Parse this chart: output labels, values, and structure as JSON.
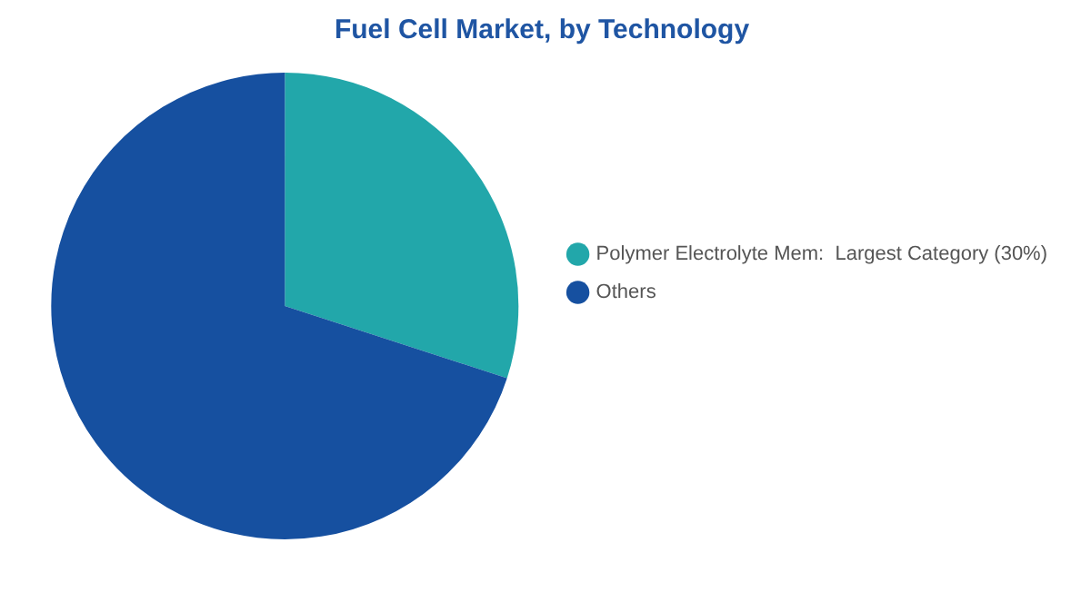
{
  "chart_data": {
    "type": "pie",
    "title": "Fuel Cell Market, by Technology",
    "categories": [
      "Polymer Electrolyte Mem:  Largest Category (30%)",
      "Others"
    ],
    "values": [
      30,
      70
    ],
    "colors": [
      "#22a7aa",
      "#1650a0"
    ],
    "legend": "right"
  }
}
